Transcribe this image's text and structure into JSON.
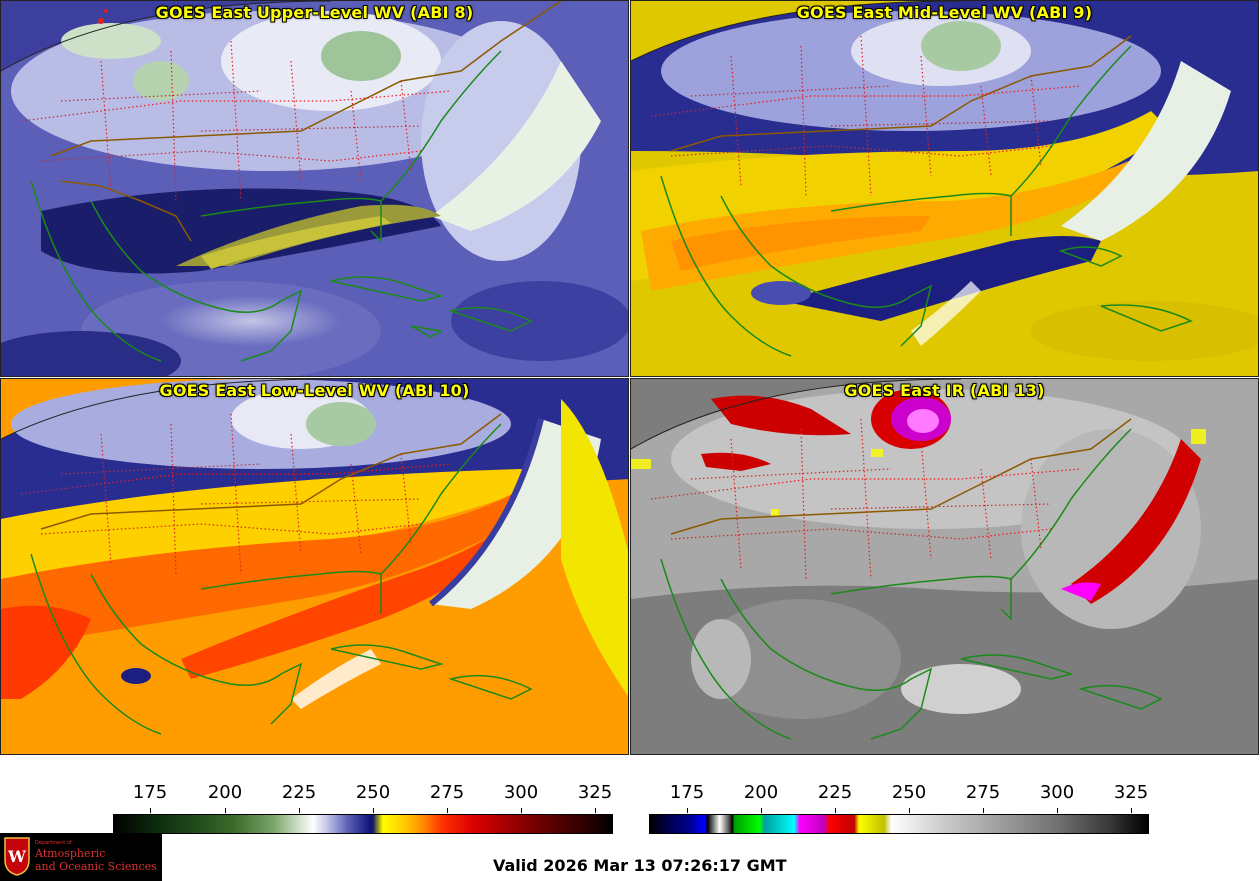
{
  "panels": [
    {
      "title": "GOES East Upper-Level WV (ABI 8)"
    },
    {
      "title": "GOES East Mid-Level WV (ABI 9)"
    },
    {
      "title": "GOES East Low-Level WV (ABI 10)"
    },
    {
      "title": "GOES East IR (ABI 13)"
    }
  ],
  "colorbars": {
    "wv": {
      "ticks": [
        "175",
        "200",
        "225",
        "250",
        "275",
        "300",
        "325"
      ]
    },
    "ir": {
      "ticks": [
        "175",
        "200",
        "225",
        "250",
        "275",
        "300",
        "325"
      ]
    }
  },
  "valid_time": "Valid 2026 Mar 13 07:26:17 GMT",
  "logo": {
    "department": "Department of",
    "line1": "Atmospheric",
    "line2": "and Oceanic Sciences",
    "crest_letter": "W"
  },
  "colors": {
    "coastline": "#1a8a1a",
    "state_border": "#e02020",
    "country_border": "#8b5a00",
    "title": "#ffff00"
  }
}
